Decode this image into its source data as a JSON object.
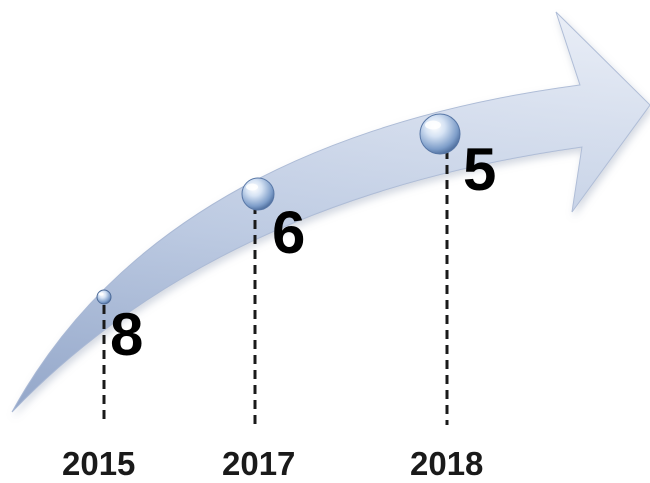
{
  "milestones": [
    {
      "year": "2015",
      "value": "8"
    },
    {
      "year": "2017",
      "value": "6"
    },
    {
      "year": "2018",
      "value": "5"
    }
  ],
  "colors": {
    "arrow_light": "#dfe6f3",
    "arrow_dark": "#8ea2c6",
    "marker": "#5f83b5",
    "text": "#000000"
  }
}
